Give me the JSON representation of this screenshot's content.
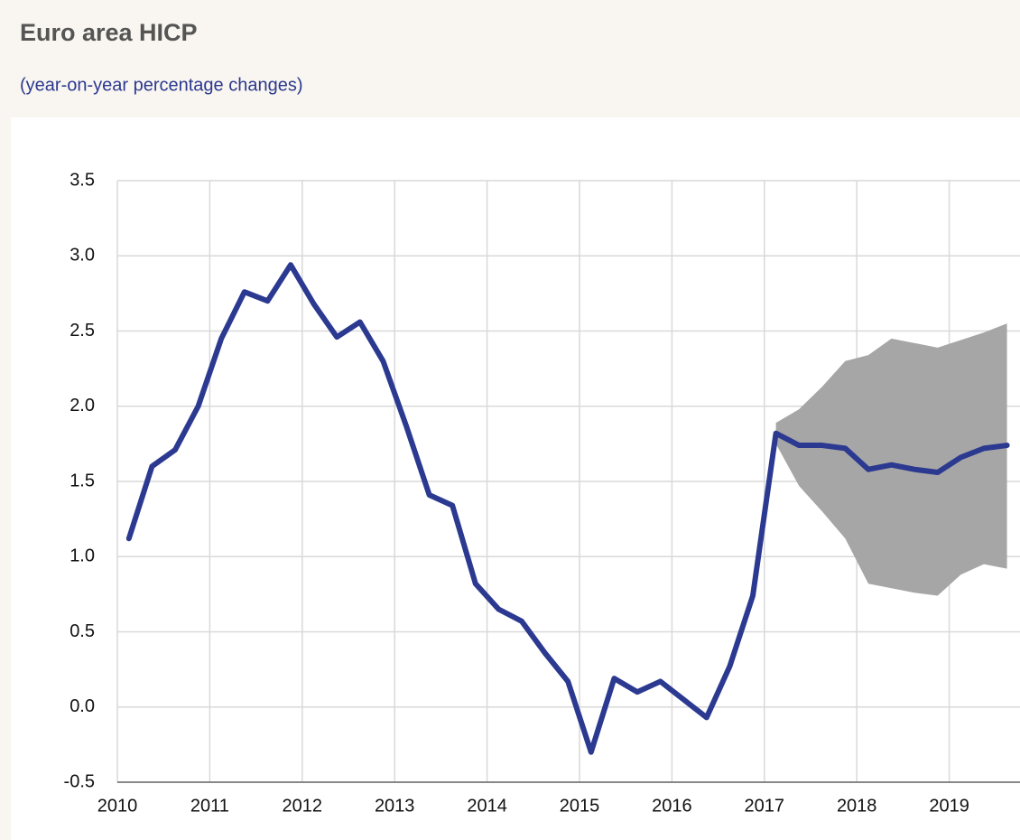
{
  "chart_data": {
    "type": "line",
    "title": "Euro area HICP",
    "subtitle": "(year-on-year percentage changes)",
    "x": [
      2010.125,
      2010.375,
      2010.625,
      2010.875,
      2011.125,
      2011.375,
      2011.625,
      2011.875,
      2012.125,
      2012.375,
      2012.625,
      2012.875,
      2013.125,
      2013.375,
      2013.625,
      2013.875,
      2014.125,
      2014.375,
      2014.625,
      2014.875,
      2015.125,
      2015.375,
      2015.625,
      2015.875,
      2016.125,
      2016.375,
      2016.625,
      2016.875,
      2017.125,
      2017.375,
      2017.625,
      2017.875,
      2018.125,
      2018.375,
      2018.625,
      2018.875,
      2019.125,
      2019.375,
      2019.625
    ],
    "series": [
      {
        "color": "#2b3990",
        "values": [
          1.12,
          1.6,
          1.71,
          2.0,
          2.45,
          2.76,
          2.7,
          2.94,
          2.68,
          2.46,
          2.56,
          2.3,
          1.87,
          1.41,
          1.34,
          0.82,
          0.65,
          0.57,
          0.36,
          0.17,
          -0.3,
          0.19,
          0.1,
          0.17,
          0.05,
          -0.07,
          0.27,
          0.74,
          1.82,
          1.74,
          1.74,
          1.72,
          1.58,
          1.61,
          1.58,
          1.56,
          1.66,
          1.72,
          1.74
        ]
      }
    ],
    "band": {
      "color": "#a6a6a6",
      "x": [
        2017.125,
        2017.375,
        2017.625,
        2017.875,
        2018.125,
        2018.375,
        2018.625,
        2018.875,
        2019.125,
        2019.375,
        2019.625
      ],
      "upper": [
        1.89,
        1.98,
        2.13,
        2.3,
        2.34,
        2.45,
        2.42,
        2.39,
        2.44,
        2.49,
        2.55
      ],
      "lower": [
        1.75,
        1.47,
        1.3,
        1.12,
        0.82,
        0.79,
        0.76,
        0.74,
        0.88,
        0.95,
        0.92
      ]
    },
    "xlim": [
      2010,
      2019.75
    ],
    "xticks": [
      2010,
      2011,
      2012,
      2013,
      2014,
      2015,
      2016,
      2017,
      2018,
      2019
    ],
    "ylim": [
      -0.5,
      3.5
    ],
    "yticks": [
      -0.5,
      {
        "value": 0,
        "label": "0.0"
      },
      0.5,
      {
        "value": 1,
        "label": "1.0"
      },
      1.5,
      {
        "value": 2,
        "label": "2.0"
      },
      2.5,
      {
        "value": 3,
        "label": "3.0"
      },
      3.5
    ],
    "grid": true
  }
}
